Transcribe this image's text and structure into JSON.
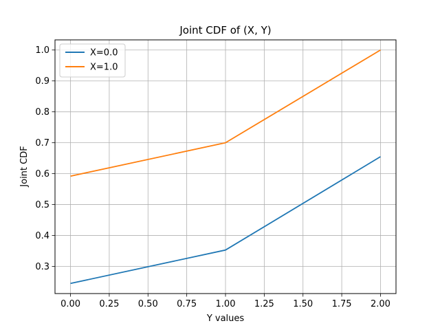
{
  "chart_data": {
    "type": "line",
    "title": "Joint CDF of (X, Y)",
    "xlabel": "Y values",
    "ylabel": "Joint CDF",
    "x": [
      0.0,
      1.0,
      2.0
    ],
    "series": [
      {
        "name": "X=0.0",
        "values": [
          0.245,
          0.353,
          0.655
        ],
        "color": "#1f77b4"
      },
      {
        "name": "X=1.0",
        "values": [
          0.592,
          0.7,
          1.0
        ],
        "color": "#ff7f0e"
      }
    ],
    "xlim": [
      -0.1,
      2.1
    ],
    "ylim": [
      0.2122,
      1.0328
    ],
    "xticks": [
      0.0,
      0.25,
      0.5,
      0.75,
      1.0,
      1.25,
      1.5,
      1.75,
      2.0
    ],
    "xtick_labels": [
      "0.00",
      "0.25",
      "0.50",
      "0.75",
      "1.00",
      "1.25",
      "1.50",
      "1.75",
      "2.00"
    ],
    "yticks": [
      0.3,
      0.4,
      0.5,
      0.6,
      0.7,
      0.8,
      0.9,
      1.0
    ],
    "ytick_labels": [
      "0.3",
      "0.4",
      "0.5",
      "0.6",
      "0.7",
      "0.8",
      "0.9",
      "1.0"
    ],
    "grid": true,
    "legend_position": "top-left"
  }
}
